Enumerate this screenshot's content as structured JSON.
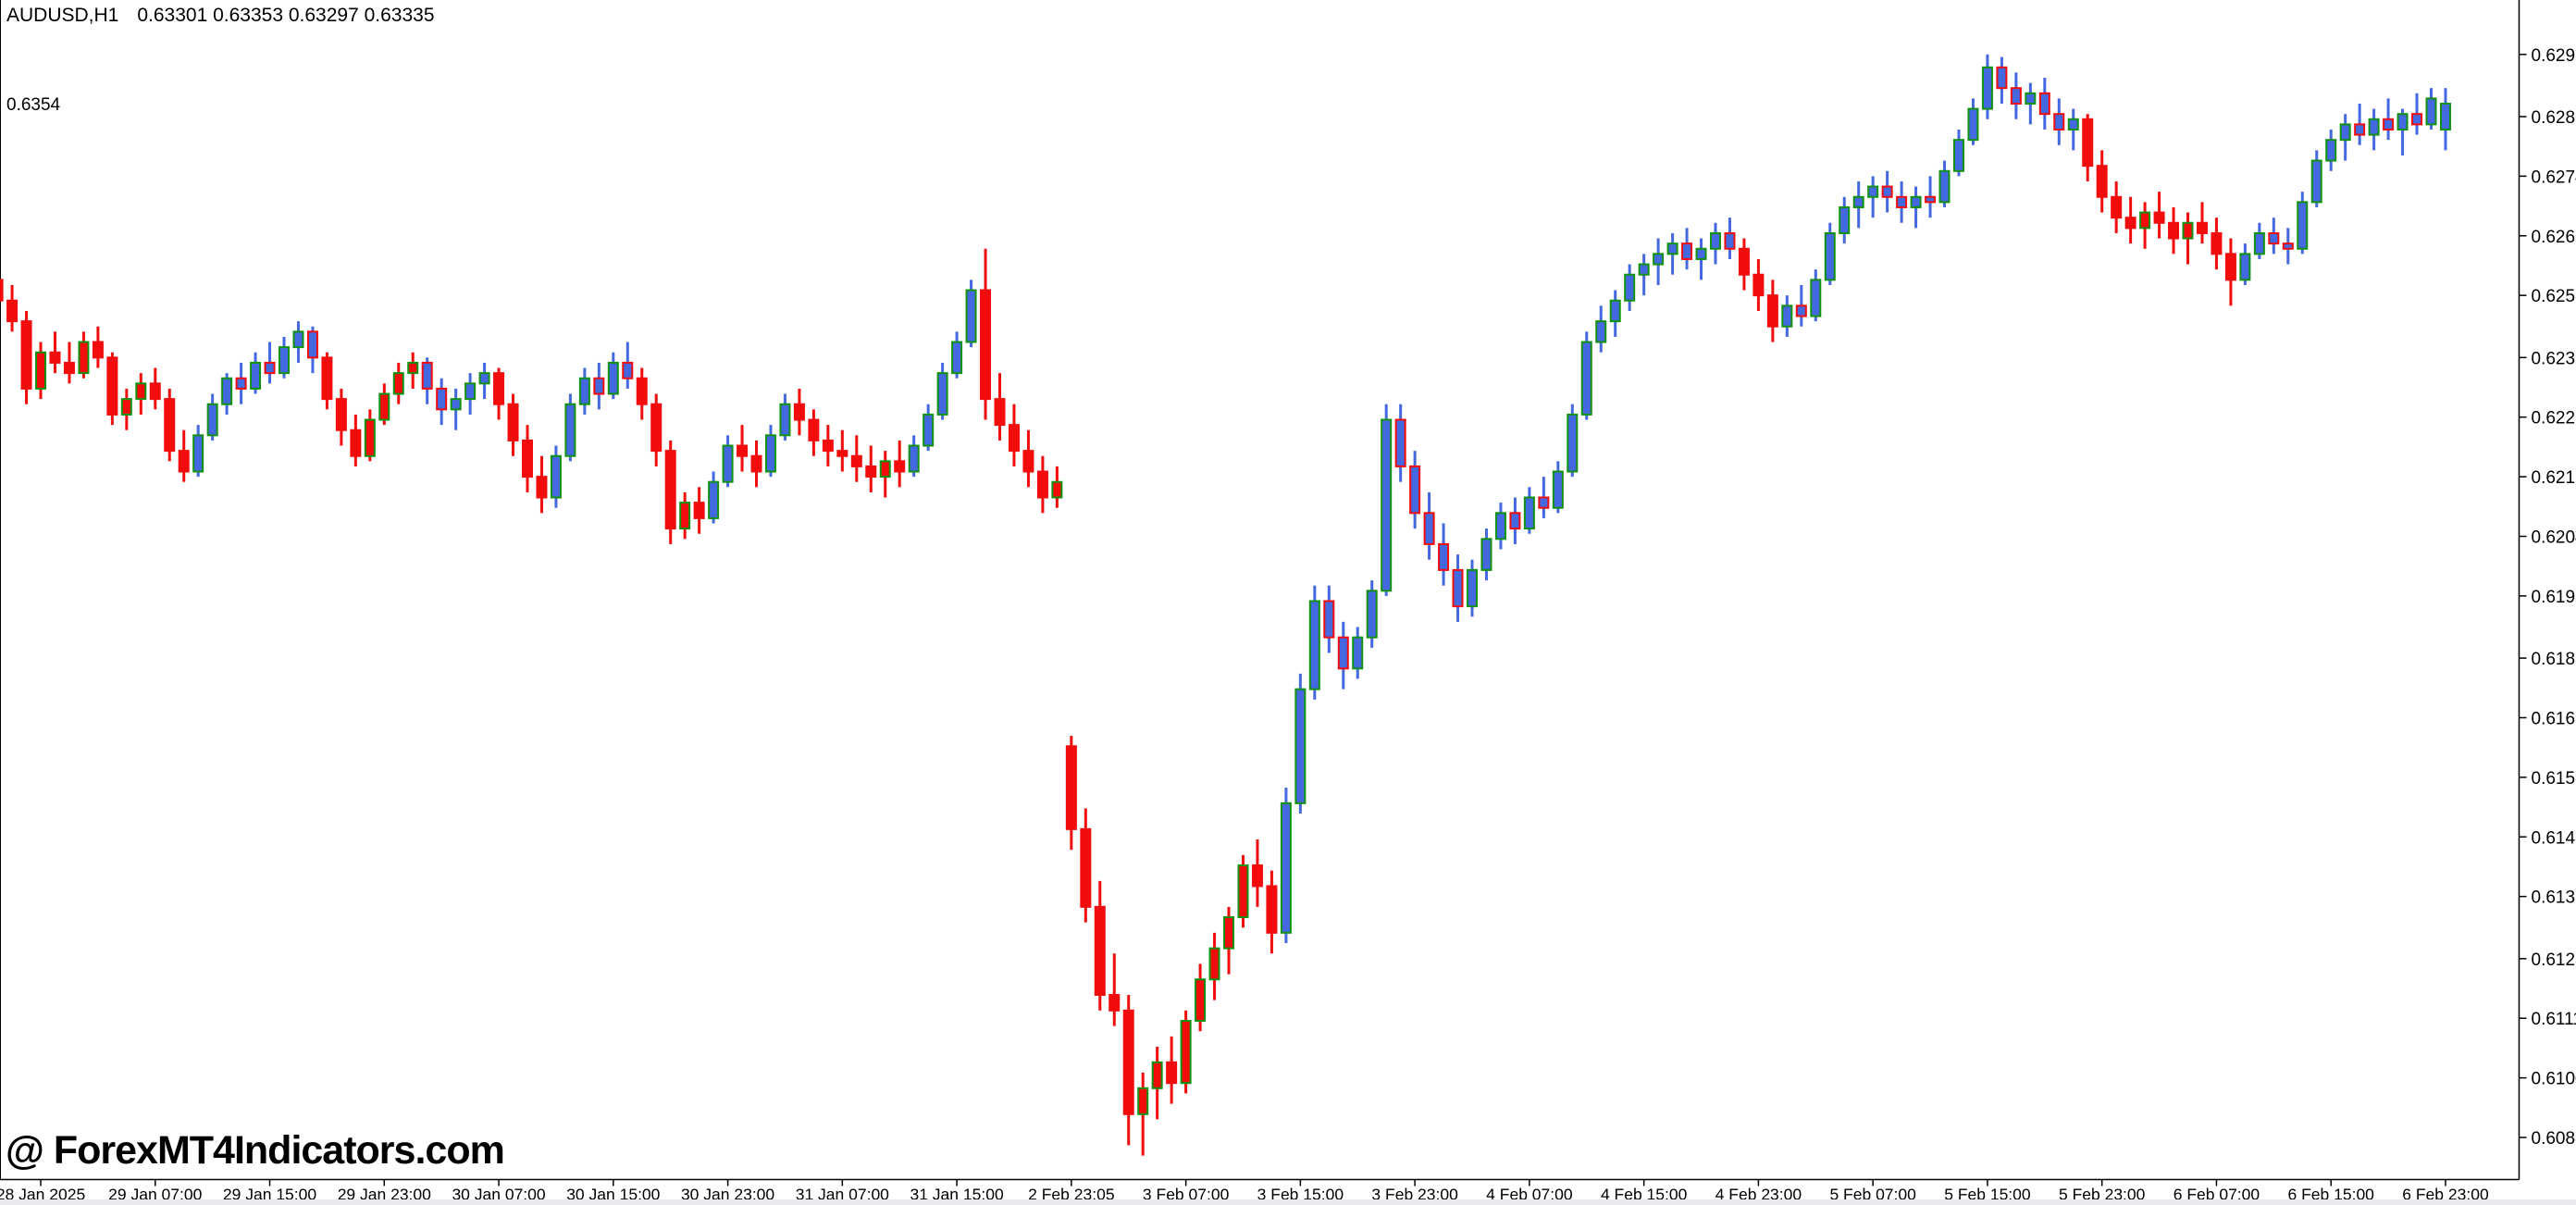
{
  "header": {
    "symbol_timeframe": "AUDUSD,H1",
    "ohlc": "0.63301 0.63353 0.63297 0.63335",
    "open": "0.63301",
    "high": "0.63353",
    "low": "0.63297",
    "close": "0.63335"
  },
  "left_label": "0.6354",
  "watermark": "@ ForexMT4Indicators.com",
  "price_axis": {
    "labels": [
      "0.62975",
      "0.62855",
      "0.62740",
      "0.62625",
      "0.62510",
      "0.62390",
      "0.62275",
      "0.62160",
      "0.62045",
      "0.61930",
      "0.61810",
      "0.61695",
      "0.61580",
      "0.61465",
      "0.61350",
      "0.61230",
      "0.61115",
      "0.61000",
      "0.60885"
    ]
  },
  "time_axis": {
    "labels": [
      {
        "bar": 3,
        "text": "28 Jan 2025"
      },
      {
        "bar": 11,
        "text": "29 Jan 07:00"
      },
      {
        "bar": 19,
        "text": "29 Jan 15:00"
      },
      {
        "bar": 27,
        "text": "29 Jan 23:00"
      },
      {
        "bar": 35,
        "text": "30 Jan 07:00"
      },
      {
        "bar": 43,
        "text": "30 Jan 15:00"
      },
      {
        "bar": 51,
        "text": "30 Jan 23:00"
      },
      {
        "bar": 59,
        "text": "31 Jan 07:00"
      },
      {
        "bar": 67,
        "text": "31 Jan 15:00"
      },
      {
        "bar": 75,
        "text": "2 Feb 23:05"
      },
      {
        "bar": 83,
        "text": "3 Feb 07:00"
      },
      {
        "bar": 91,
        "text": "3 Feb 15:00"
      },
      {
        "bar": 99,
        "text": "3 Feb 23:00"
      },
      {
        "bar": 107,
        "text": "4 Feb 07:00"
      },
      {
        "bar": 115,
        "text": "4 Feb 15:00"
      },
      {
        "bar": 123,
        "text": "4 Feb 23:00"
      },
      {
        "bar": 131,
        "text": "5 Feb 07:00"
      },
      {
        "bar": 139,
        "text": "5 Feb 15:00"
      },
      {
        "bar": 147,
        "text": "5 Feb 23:00"
      },
      {
        "bar": 155,
        "text": "6 Feb 07:00"
      },
      {
        "bar": 163,
        "text": "6 Feb 15:00"
      },
      {
        "bar": 171,
        "text": "6 Feb 23:00"
      }
    ]
  },
  "chart_data": {
    "type": "candlestick",
    "symbol": "AUDUSD",
    "timeframe": "H1",
    "title": "AUDUSD,H1",
    "ylim": [
      0.60804,
      0.6308
    ],
    "grid": false,
    "colors": {
      "background": "#ffffff",
      "axis": "#000000",
      "bull_border": "#119311",
      "bear_border": "#f20c0c",
      "overlay_blue": "#4468df",
      "overlay_red": "#f20c0c",
      "status_strip": "#e7e9ec"
    },
    "overlay_colors": "rrrrrrrrrrrrrrbbbbbbbbbrrrrrrrbbbbbrrrrbbbbbbrrrrrbbrrbbrrrrrrrrbbbbbrrrrrrrrrrrrrrrrrrrrrbbbbbbbbbbbbbbbbbbbbbbbbbbbbbbbbrrrbbbbbbbbbbbbbbbbbbbbbrrrrrrrrrrrbbbbbbbbbbbbbbb",
    "bars": [
      [
        0.6254,
        0.6256,
        0.6248,
        0.625
      ],
      [
        0.625,
        0.6253,
        0.6244,
        0.6246
      ],
      [
        0.6246,
        0.6248,
        0.623,
        0.6233
      ],
      [
        0.6233,
        0.6242,
        0.6231,
        0.624
      ],
      [
        0.624,
        0.6244,
        0.6236,
        0.6238
      ],
      [
        0.6238,
        0.6242,
        0.6234,
        0.6236
      ],
      [
        0.6236,
        0.6244,
        0.6235,
        0.6242
      ],
      [
        0.6242,
        0.6245,
        0.6237,
        0.6239
      ],
      [
        0.6239,
        0.624,
        0.6226,
        0.6228
      ],
      [
        0.6228,
        0.6233,
        0.6225,
        0.6231
      ],
      [
        0.6231,
        0.6236,
        0.6228,
        0.6234
      ],
      [
        0.6234,
        0.6237,
        0.6229,
        0.6231
      ],
      [
        0.6231,
        0.6233,
        0.6219,
        0.6221
      ],
      [
        0.6221,
        0.6225,
        0.6215,
        0.6217
      ],
      [
        0.6217,
        0.6226,
        0.6216,
        0.6224
      ],
      [
        0.6224,
        0.6232,
        0.6223,
        0.623
      ],
      [
        0.623,
        0.6236,
        0.6228,
        0.6235
      ],
      [
        0.6235,
        0.6238,
        0.623,
        0.6233
      ],
      [
        0.6233,
        0.624,
        0.6232,
        0.6238
      ],
      [
        0.6238,
        0.6242,
        0.6234,
        0.6236
      ],
      [
        0.6236,
        0.6243,
        0.6235,
        0.6241
      ],
      [
        0.6241,
        0.6246,
        0.6238,
        0.6244
      ],
      [
        0.6244,
        0.6245,
        0.6236,
        0.6239
      ],
      [
        0.6239,
        0.624,
        0.6229,
        0.6231
      ],
      [
        0.6231,
        0.6233,
        0.6222,
        0.6225
      ],
      [
        0.6225,
        0.6228,
        0.6218,
        0.622
      ],
      [
        0.622,
        0.6229,
        0.6219,
        0.6227
      ],
      [
        0.6227,
        0.6234,
        0.6226,
        0.6232
      ],
      [
        0.6232,
        0.6238,
        0.623,
        0.6236
      ],
      [
        0.6236,
        0.624,
        0.6233,
        0.6238
      ],
      [
        0.6238,
        0.6239,
        0.623,
        0.6233
      ],
      [
        0.6233,
        0.6235,
        0.6226,
        0.6229
      ],
      [
        0.6229,
        0.6233,
        0.6225,
        0.6231
      ],
      [
        0.6231,
        0.6236,
        0.6228,
        0.6234
      ],
      [
        0.6234,
        0.6238,
        0.6231,
        0.6236
      ],
      [
        0.6236,
        0.6237,
        0.6227,
        0.623
      ],
      [
        0.623,
        0.6232,
        0.622,
        0.6223
      ],
      [
        0.6223,
        0.6226,
        0.6213,
        0.6216
      ],
      [
        0.6216,
        0.622,
        0.6209,
        0.6212
      ],
      [
        0.6212,
        0.6222,
        0.621,
        0.622
      ],
      [
        0.622,
        0.6232,
        0.6219,
        0.623
      ],
      [
        0.623,
        0.6237,
        0.6228,
        0.6235
      ],
      [
        0.6235,
        0.6238,
        0.6229,
        0.6232
      ],
      [
        0.6232,
        0.624,
        0.6231,
        0.6238
      ],
      [
        0.6238,
        0.6242,
        0.6233,
        0.6235
      ],
      [
        0.6235,
        0.6237,
        0.6227,
        0.623
      ],
      [
        0.623,
        0.6232,
        0.6218,
        0.6221
      ],
      [
        0.6221,
        0.6223,
        0.6203,
        0.6206
      ],
      [
        0.6206,
        0.6213,
        0.6204,
        0.6211
      ],
      [
        0.6211,
        0.6214,
        0.6205,
        0.6208
      ],
      [
        0.6208,
        0.6217,
        0.6207,
        0.6215
      ],
      [
        0.6215,
        0.6224,
        0.6214,
        0.6222
      ],
      [
        0.6222,
        0.6226,
        0.6217,
        0.622
      ],
      [
        0.622,
        0.6223,
        0.6214,
        0.6217
      ],
      [
        0.6217,
        0.6226,
        0.6216,
        0.6224
      ],
      [
        0.6224,
        0.6232,
        0.6223,
        0.623
      ],
      [
        0.623,
        0.6233,
        0.6224,
        0.6227
      ],
      [
        0.6227,
        0.6229,
        0.622,
        0.6223
      ],
      [
        0.6223,
        0.6226,
        0.6218,
        0.6221
      ],
      [
        0.6221,
        0.6225,
        0.6217,
        0.622
      ],
      [
        0.622,
        0.6224,
        0.6215,
        0.6218
      ],
      [
        0.6218,
        0.6222,
        0.6213,
        0.6216
      ],
      [
        0.6216,
        0.6221,
        0.6212,
        0.6219
      ],
      [
        0.6219,
        0.6223,
        0.6214,
        0.6217
      ],
      [
        0.6217,
        0.6224,
        0.6216,
        0.6222
      ],
      [
        0.6222,
        0.623,
        0.6221,
        0.6228
      ],
      [
        0.6228,
        0.6238,
        0.6227,
        0.6236
      ],
      [
        0.6236,
        0.6244,
        0.6235,
        0.6242
      ],
      [
        0.6242,
        0.6254,
        0.6241,
        0.6252
      ],
      [
        0.6252,
        0.626,
        0.6227,
        0.6231
      ],
      [
        0.6231,
        0.6236,
        0.6223,
        0.6226
      ],
      [
        0.6226,
        0.623,
        0.6218,
        0.6221
      ],
      [
        0.6221,
        0.6225,
        0.6214,
        0.6217
      ],
      [
        0.6217,
        0.622,
        0.6209,
        0.6212
      ],
      [
        0.6212,
        0.6218,
        0.621,
        0.6215
      ],
      [
        0.6164,
        0.6166,
        0.6144,
        0.6148
      ],
      [
        0.6148,
        0.6152,
        0.613,
        0.6133
      ],
      [
        0.6133,
        0.6138,
        0.6113,
        0.6116
      ],
      [
        0.6116,
        0.6124,
        0.611,
        0.6113
      ],
      [
        0.6113,
        0.6116,
        0.6087,
        0.6093
      ],
      [
        0.6093,
        0.6101,
        0.6085,
        0.6098
      ],
      [
        0.6098,
        0.6106,
        0.6092,
        0.6103
      ],
      [
        0.6103,
        0.6108,
        0.6095,
        0.6099
      ],
      [
        0.6099,
        0.6113,
        0.6097,
        0.6111
      ],
      [
        0.6111,
        0.6122,
        0.6109,
        0.6119
      ],
      [
        0.6119,
        0.6128,
        0.6115,
        0.6125
      ],
      [
        0.6125,
        0.6133,
        0.612,
        0.6131
      ],
      [
        0.6131,
        0.6143,
        0.6129,
        0.6141
      ],
      [
        0.6141,
        0.6146,
        0.6133,
        0.6137
      ],
      [
        0.6137,
        0.614,
        0.6124,
        0.6128
      ],
      [
        0.6128,
        0.6156,
        0.6126,
        0.6153
      ],
      [
        0.6153,
        0.6178,
        0.6151,
        0.6175
      ],
      [
        0.6175,
        0.6195,
        0.6173,
        0.6192
      ],
      [
        0.6192,
        0.6195,
        0.6182,
        0.6185
      ],
      [
        0.6185,
        0.6188,
        0.6175,
        0.6179
      ],
      [
        0.6179,
        0.6187,
        0.6177,
        0.6185
      ],
      [
        0.6185,
        0.6196,
        0.6183,
        0.6194
      ],
      [
        0.6194,
        0.623,
        0.6193,
        0.6227
      ],
      [
        0.6227,
        0.623,
        0.6215,
        0.6218
      ],
      [
        0.6218,
        0.6221,
        0.6206,
        0.6209
      ],
      [
        0.6209,
        0.6213,
        0.62,
        0.6203
      ],
      [
        0.6203,
        0.6207,
        0.6195,
        0.6198
      ],
      [
        0.6198,
        0.6201,
        0.6188,
        0.6191
      ],
      [
        0.6191,
        0.62,
        0.6189,
        0.6198
      ],
      [
        0.6198,
        0.6206,
        0.6196,
        0.6204
      ],
      [
        0.6204,
        0.6211,
        0.6202,
        0.6209
      ],
      [
        0.6209,
        0.6212,
        0.6203,
        0.6206
      ],
      [
        0.6206,
        0.6214,
        0.6205,
        0.6212
      ],
      [
        0.6212,
        0.6216,
        0.6208,
        0.621
      ],
      [
        0.621,
        0.6219,
        0.6209,
        0.6217
      ],
      [
        0.6217,
        0.623,
        0.6216,
        0.6228
      ],
      [
        0.6228,
        0.6244,
        0.6227,
        0.6242
      ],
      [
        0.6242,
        0.6249,
        0.624,
        0.6246
      ],
      [
        0.6246,
        0.6252,
        0.6243,
        0.625
      ],
      [
        0.625,
        0.6257,
        0.6248,
        0.6255
      ],
      [
        0.6255,
        0.6259,
        0.6251,
        0.6257
      ],
      [
        0.6257,
        0.6262,
        0.6253,
        0.6259
      ],
      [
        0.6259,
        0.6263,
        0.6255,
        0.6261
      ],
      [
        0.6261,
        0.6264,
        0.6256,
        0.6258
      ],
      [
        0.6258,
        0.6262,
        0.6254,
        0.626
      ],
      [
        0.626,
        0.6265,
        0.6257,
        0.6263
      ],
      [
        0.6263,
        0.6266,
        0.6258,
        0.626
      ],
      [
        0.626,
        0.6262,
        0.6252,
        0.6255
      ],
      [
        0.6255,
        0.6258,
        0.6248,
        0.6251
      ],
      [
        0.6251,
        0.6254,
        0.6242,
        0.6245
      ],
      [
        0.6245,
        0.6251,
        0.6243,
        0.6249
      ],
      [
        0.6249,
        0.6253,
        0.6245,
        0.6247
      ],
      [
        0.6247,
        0.6256,
        0.6246,
        0.6254
      ],
      [
        0.6254,
        0.6265,
        0.6253,
        0.6263
      ],
      [
        0.6263,
        0.627,
        0.6261,
        0.6268
      ],
      [
        0.6268,
        0.6273,
        0.6264,
        0.627
      ],
      [
        0.627,
        0.6274,
        0.6266,
        0.6272
      ],
      [
        0.6272,
        0.6275,
        0.6267,
        0.627
      ],
      [
        0.627,
        0.6273,
        0.6265,
        0.6268
      ],
      [
        0.6268,
        0.6272,
        0.6264,
        0.627
      ],
      [
        0.627,
        0.6274,
        0.6266,
        0.6269
      ],
      [
        0.6269,
        0.6277,
        0.6268,
        0.6275
      ],
      [
        0.6275,
        0.6283,
        0.6274,
        0.6281
      ],
      [
        0.6281,
        0.6289,
        0.628,
        0.6287
      ],
      [
        0.6287,
        0.62975,
        0.6285,
        0.6295
      ],
      [
        0.6295,
        0.6297,
        0.6288,
        0.6291
      ],
      [
        0.6291,
        0.6294,
        0.6285,
        0.6288
      ],
      [
        0.6288,
        0.6292,
        0.6284,
        0.629
      ],
      [
        0.629,
        0.6293,
        0.6283,
        0.6286
      ],
      [
        0.6286,
        0.6289,
        0.628,
        0.6283
      ],
      [
        0.6283,
        0.6287,
        0.6279,
        0.6285
      ],
      [
        0.6285,
        0.6286,
        0.6273,
        0.6276
      ],
      [
        0.6276,
        0.6279,
        0.6267,
        0.627
      ],
      [
        0.627,
        0.6273,
        0.6263,
        0.6266
      ],
      [
        0.6266,
        0.627,
        0.6261,
        0.6264
      ],
      [
        0.6264,
        0.6269,
        0.626,
        0.6267
      ],
      [
        0.6267,
        0.6271,
        0.6262,
        0.6265
      ],
      [
        0.6265,
        0.6268,
        0.6259,
        0.6262
      ],
      [
        0.6262,
        0.6267,
        0.6257,
        0.6265
      ],
      [
        0.6265,
        0.6269,
        0.6261,
        0.6263
      ],
      [
        0.6263,
        0.6266,
        0.6256,
        0.6259
      ],
      [
        0.6259,
        0.6262,
        0.6249,
        0.6254
      ],
      [
        0.6254,
        0.6261,
        0.6253,
        0.6259
      ],
      [
        0.6259,
        0.6265,
        0.6258,
        0.6263
      ],
      [
        0.6263,
        0.6266,
        0.6259,
        0.6261
      ],
      [
        0.6261,
        0.6264,
        0.6257,
        0.626
      ],
      [
        0.626,
        0.6271,
        0.6259,
        0.6269
      ],
      [
        0.6269,
        0.6279,
        0.6268,
        0.6277
      ],
      [
        0.6277,
        0.6283,
        0.6275,
        0.6281
      ],
      [
        0.6281,
        0.6286,
        0.6277,
        0.6284
      ],
      [
        0.6284,
        0.6288,
        0.628,
        0.6282
      ],
      [
        0.6282,
        0.6287,
        0.6279,
        0.6285
      ],
      [
        0.6285,
        0.6289,
        0.6281,
        0.6283
      ],
      [
        0.6283,
        0.6287,
        0.6278,
        0.6286
      ],
      [
        0.6286,
        0.629,
        0.6282,
        0.6284
      ],
      [
        0.6284,
        0.6291,
        0.6283,
        0.6289
      ],
      [
        0.6283,
        0.6291,
        0.6279,
        0.6288
      ]
    ]
  }
}
